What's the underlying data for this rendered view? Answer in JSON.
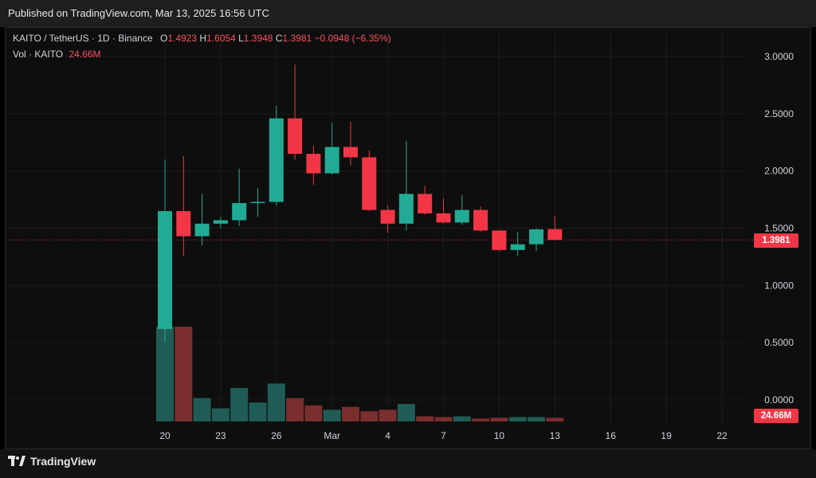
{
  "header": {
    "published": "Published on TradingView.com, Mar 13, 2025 16:56 UTC"
  },
  "legend": {
    "symbol": "KAITO / TetherUS · 1D · Binance",
    "o_label": "O",
    "o_value": "1.4923",
    "h_label": "H",
    "h_value": "1.6054",
    "l_label": "L",
    "l_value": "1.3948",
    "c_label": "C",
    "c_value": "1.3981",
    "change": "−0.0948 (−6.35%)",
    "vol_label": "Vol · KAITO",
    "vol_value": "24.66M"
  },
  "tags": {
    "last_price": "1.3981",
    "last_volume": "24.66M"
  },
  "footer": {
    "brand": "TradingView"
  },
  "colors": {
    "up": "#22ab94",
    "down": "#f23645",
    "up_vol": "#1f5c55",
    "down_vol": "#7a2e2e",
    "grid": "#1c1c1c",
    "text": "#d1d4dc"
  },
  "chart_data": {
    "type": "candlestick",
    "title": "KAITO / TetherUS · 1D · Binance",
    "ylim": [
      0.0,
      3.0
    ],
    "y_ticks": [
      "3.0000",
      "2.5000",
      "2.0000",
      "1.5000",
      "1.0000",
      "0.5000",
      "0.0000"
    ],
    "x_ticks": [
      "20",
      "23",
      "26",
      "Mar",
      "4",
      "7",
      "10",
      "13",
      "16",
      "19",
      "22"
    ],
    "last_price": 1.3981,
    "candles": [
      {
        "date": "Feb 20",
        "open": 0.62,
        "high": 2.1,
        "low": 0.5,
        "close": 1.65,
        "volume": 0.65
      },
      {
        "date": "Feb 21",
        "open": 1.65,
        "high": 2.13,
        "low": 1.26,
        "close": 1.43,
        "volume": 0.65
      },
      {
        "date": "Feb 22",
        "open": 1.43,
        "high": 1.8,
        "low": 1.35,
        "close": 1.54,
        "volume": 0.16
      },
      {
        "date": "Feb 23",
        "open": 1.54,
        "high": 1.6,
        "low": 1.5,
        "close": 1.57,
        "volume": 0.09
      },
      {
        "date": "Feb 24",
        "open": 1.57,
        "high": 2.02,
        "low": 1.52,
        "close": 1.72,
        "volume": 0.23
      },
      {
        "date": "Feb 25",
        "open": 1.72,
        "high": 1.85,
        "low": 1.6,
        "close": 1.73,
        "volume": 0.13
      },
      {
        "date": "Feb 26",
        "open": 1.73,
        "high": 2.57,
        "low": 1.7,
        "close": 2.46,
        "volume": 0.26
      },
      {
        "date": "Feb 27",
        "open": 2.46,
        "high": 2.93,
        "low": 2.1,
        "close": 2.15,
        "volume": 0.16
      },
      {
        "date": "Feb 28",
        "open": 2.15,
        "high": 2.22,
        "low": 1.88,
        "close": 1.98,
        "volume": 0.11
      },
      {
        "date": "Mar 1",
        "open": 1.98,
        "high": 2.42,
        "low": 1.97,
        "close": 2.21,
        "volume": 0.08
      },
      {
        "date": "Mar 2",
        "open": 2.21,
        "high": 2.43,
        "low": 2.05,
        "close": 2.12,
        "volume": 0.1
      },
      {
        "date": "Mar 3",
        "open": 2.12,
        "high": 2.18,
        "low": 1.65,
        "close": 1.66,
        "volume": 0.07
      },
      {
        "date": "Mar 4",
        "open": 1.66,
        "high": 1.7,
        "low": 1.46,
        "close": 1.54,
        "volume": 0.08
      },
      {
        "date": "Mar 5",
        "open": 1.54,
        "high": 2.26,
        "low": 1.48,
        "close": 1.8,
        "volume": 0.12
      },
      {
        "date": "Mar 6",
        "open": 1.8,
        "high": 1.87,
        "low": 1.62,
        "close": 1.63,
        "volume": 0.035
      },
      {
        "date": "Mar 7",
        "open": 1.63,
        "high": 1.76,
        "low": 1.54,
        "close": 1.55,
        "volume": 0.03
      },
      {
        "date": "Mar 8",
        "open": 1.55,
        "high": 1.79,
        "low": 1.53,
        "close": 1.66,
        "volume": 0.035
      },
      {
        "date": "Mar 9",
        "open": 1.66,
        "high": 1.69,
        "low": 1.47,
        "close": 1.48,
        "volume": 0.02
      },
      {
        "date": "Mar 10",
        "open": 1.48,
        "high": 1.48,
        "low": 1.3,
        "close": 1.31,
        "volume": 0.025
      },
      {
        "date": "Mar 11",
        "open": 1.31,
        "high": 1.47,
        "low": 1.26,
        "close": 1.36,
        "volume": 0.03
      },
      {
        "date": "Mar 12",
        "open": 1.36,
        "high": 1.5,
        "low": 1.3,
        "close": 1.49,
        "volume": 0.03
      },
      {
        "date": "Mar 13",
        "open": 1.4923,
        "high": 1.6054,
        "low": 1.3948,
        "close": 1.3981,
        "volume": 0.025
      }
    ]
  }
}
